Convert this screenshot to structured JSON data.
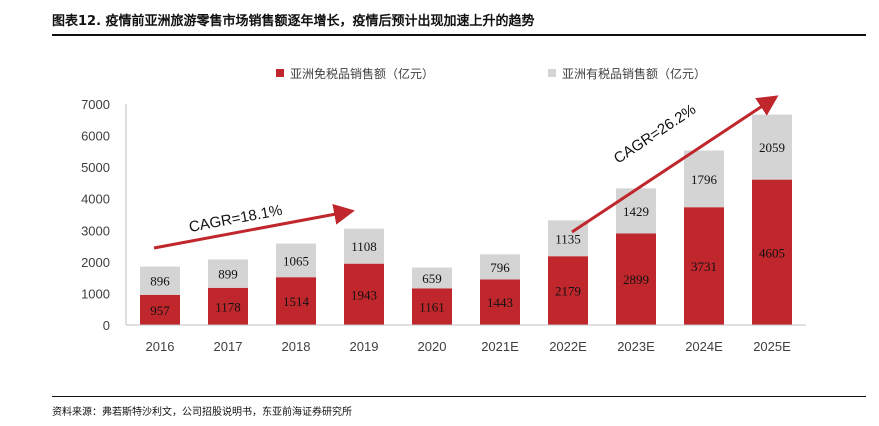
{
  "title": "图表12. 疫情前亚洲旅游零售市场销售额逐年增长，疫情后预计出现加速上升的趋势",
  "source": "资料来源：弗若斯特沙利文，公司招股说明书，东亚前海证券研究所",
  "colors": {
    "duty_free": "#c0272d",
    "duty_paid": "#d4d4d4",
    "arrow": "#c0272d"
  },
  "chart_data": {
    "type": "bar",
    "stacked": true,
    "categories": [
      "2016",
      "2017",
      "2018",
      "2019",
      "2020",
      "2021E",
      "2022E",
      "2023E",
      "2024E",
      "2025E"
    ],
    "series": [
      {
        "name": "亚洲免税品销售额（亿元）",
        "values": [
          957,
          1178,
          1514,
          1943,
          1161,
          1443,
          2179,
          2899,
          3731,
          4605
        ]
      },
      {
        "name": "亚洲有税品销售额（亿元）",
        "values": [
          896,
          899,
          1065,
          1108,
          659,
          796,
          1135,
          1429,
          1796,
          2059
        ]
      }
    ],
    "ylim": [
      0,
      7000
    ],
    "yticks": [
      0,
      1000,
      2000,
      3000,
      4000,
      5000,
      6000,
      7000
    ],
    "legend_position": "top",
    "grid": false,
    "annotations": [
      {
        "text": "CAGR=18.1%",
        "from_category": "2016",
        "to_category": "2019"
      },
      {
        "text": "CAGR=26.2%",
        "from_category": "2022E",
        "to_category": "2025E"
      }
    ]
  }
}
